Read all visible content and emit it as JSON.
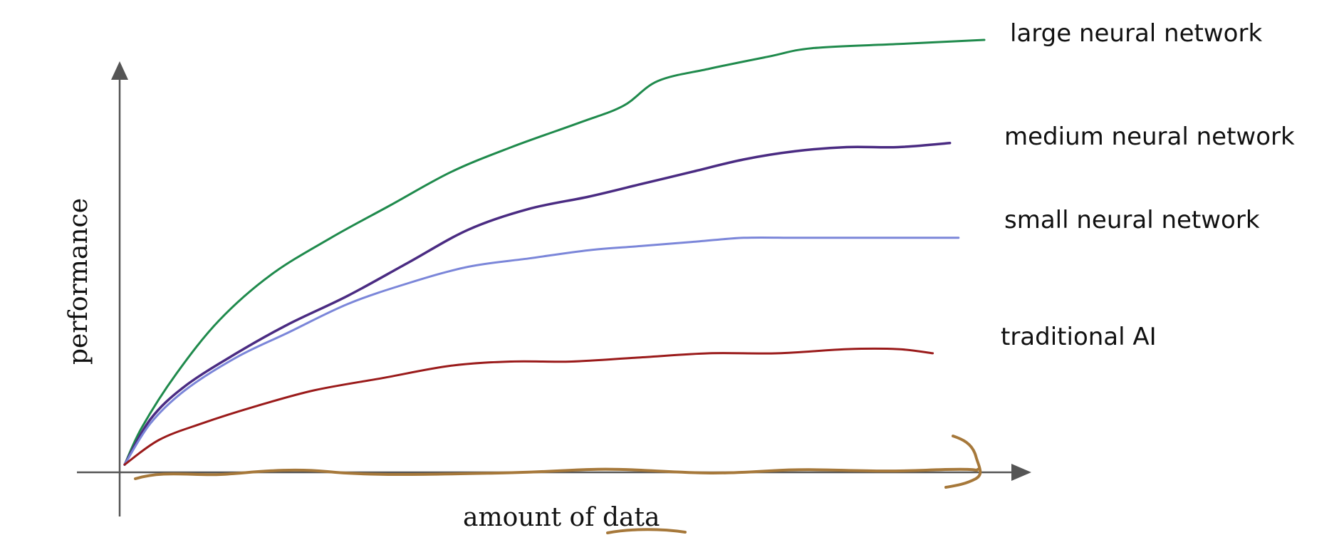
{
  "chart_data": {
    "type": "line",
    "title": "",
    "xlabel": "amount of data",
    "ylabel": "performance",
    "grid": false,
    "legend_placement": "right, inline labels at line ends",
    "series": [
      {
        "name": "large neural network",
        "color": "#1f8a4c",
        "points": [
          [
            0.0,
            0.01
          ],
          [
            0.02,
            0.1
          ],
          [
            0.06,
            0.23
          ],
          [
            0.11,
            0.36
          ],
          [
            0.17,
            0.47
          ],
          [
            0.24,
            0.56
          ],
          [
            0.31,
            0.64
          ],
          [
            0.38,
            0.72
          ],
          [
            0.45,
            0.78
          ],
          [
            0.53,
            0.84
          ],
          [
            0.58,
            0.88
          ],
          [
            0.62,
            0.94
          ],
          [
            0.68,
            0.97
          ],
          [
            0.75,
            1.0
          ],
          [
            0.8,
            1.02
          ],
          [
            0.9,
            1.03
          ],
          [
            1.0,
            1.04
          ]
        ]
      },
      {
        "name": "medium neural network",
        "color": "#4a2b82",
        "points": [
          [
            0.0,
            0.01
          ],
          [
            0.03,
            0.12
          ],
          [
            0.07,
            0.2
          ],
          [
            0.13,
            0.28
          ],
          [
            0.19,
            0.35
          ],
          [
            0.26,
            0.42
          ],
          [
            0.33,
            0.5
          ],
          [
            0.4,
            0.58
          ],
          [
            0.47,
            0.63
          ],
          [
            0.54,
            0.66
          ],
          [
            0.6,
            0.69
          ],
          [
            0.66,
            0.72
          ],
          [
            0.72,
            0.75
          ],
          [
            0.78,
            0.77
          ],
          [
            0.84,
            0.78
          ],
          [
            0.9,
            0.78
          ],
          [
            0.96,
            0.79
          ]
        ]
      },
      {
        "name": "small neural network",
        "color": "#7b86d9",
        "points": [
          [
            0.0,
            0.01
          ],
          [
            0.03,
            0.11
          ],
          [
            0.07,
            0.19
          ],
          [
            0.13,
            0.27
          ],
          [
            0.19,
            0.33
          ],
          [
            0.26,
            0.4
          ],
          [
            0.33,
            0.45
          ],
          [
            0.4,
            0.49
          ],
          [
            0.47,
            0.51
          ],
          [
            0.54,
            0.53
          ],
          [
            0.6,
            0.54
          ],
          [
            0.66,
            0.55
          ],
          [
            0.72,
            0.56
          ],
          [
            0.78,
            0.56
          ],
          [
            0.84,
            0.56
          ],
          [
            0.9,
            0.56
          ],
          [
            0.97,
            0.56
          ]
        ]
      },
      {
        "name": "traditional AI",
        "color": "#9a1a1a",
        "points": [
          [
            0.0,
            0.01
          ],
          [
            0.04,
            0.07
          ],
          [
            0.09,
            0.11
          ],
          [
            0.15,
            0.15
          ],
          [
            0.22,
            0.19
          ],
          [
            0.3,
            0.22
          ],
          [
            0.38,
            0.25
          ],
          [
            0.45,
            0.26
          ],
          [
            0.52,
            0.26
          ],
          [
            0.6,
            0.27
          ],
          [
            0.68,
            0.28
          ],
          [
            0.76,
            0.28
          ],
          [
            0.84,
            0.29
          ],
          [
            0.9,
            0.29
          ],
          [
            0.94,
            0.28
          ]
        ]
      }
    ],
    "xlim": [
      0,
      1.05
    ],
    "ylim": [
      0,
      1.1
    ],
    "annotations": [
      {
        "type": "hand-drawn arrow along x-axis",
        "color": "#a6783a"
      },
      {
        "type": "hand-drawn underline under 'data'",
        "color": "#a6783a"
      }
    ]
  },
  "axis_color": "#555555"
}
